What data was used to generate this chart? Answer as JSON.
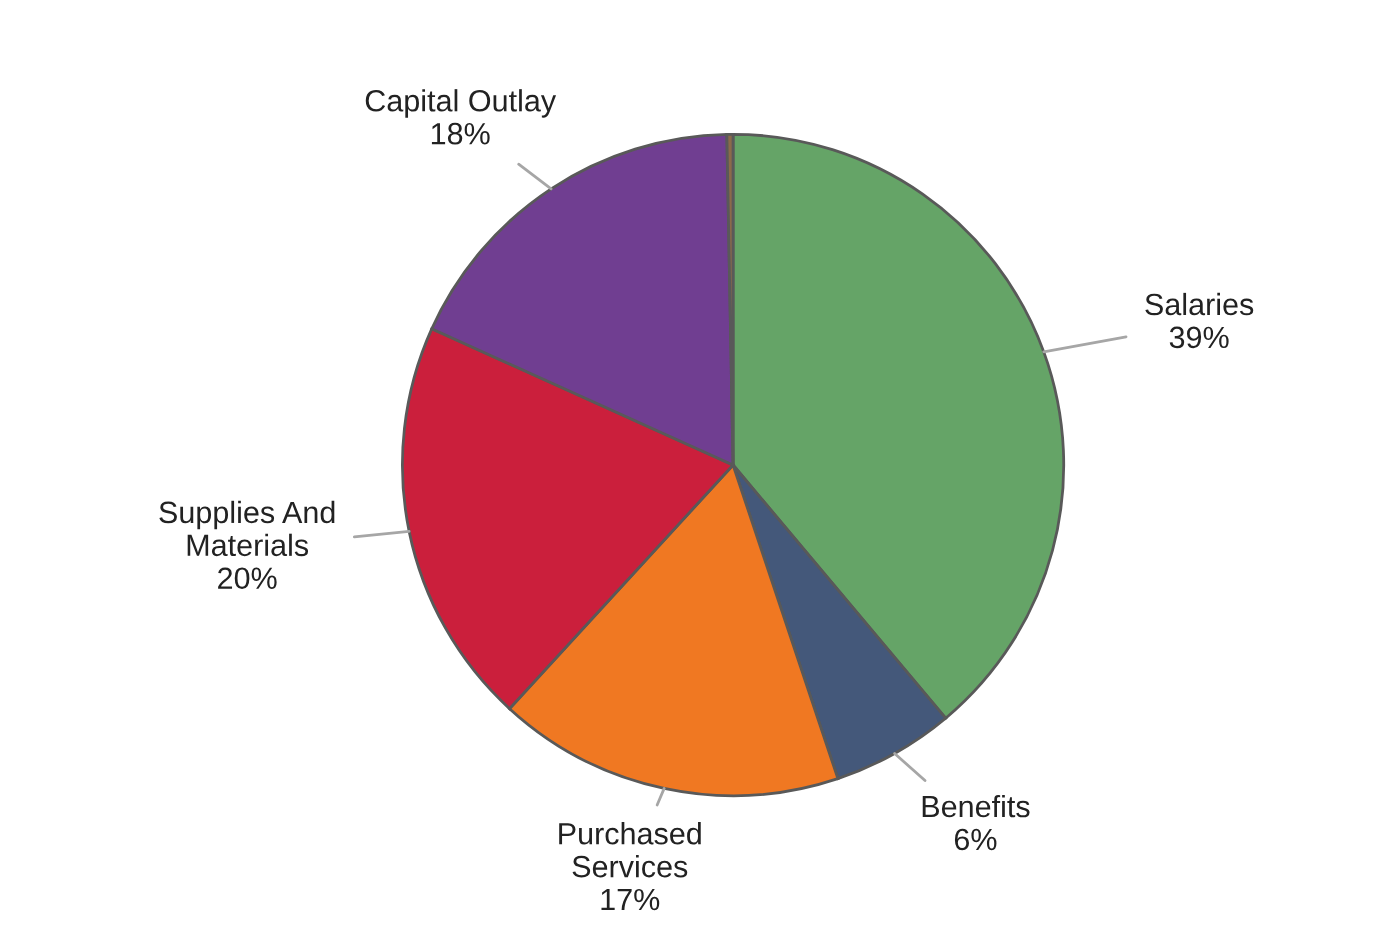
{
  "chart_data": {
    "type": "pie",
    "categories": [
      "Salaries",
      "Benefits",
      "Purchased Services",
      "Supplies And Materials",
      "Capital Outlay",
      null
    ],
    "values": [
      39,
      6,
      17,
      20,
      18,
      0.3
    ],
    "value_labels": [
      "39%",
      "6%",
      "17%",
      "20%",
      "18%",
      null
    ],
    "colors": [
      "#65a467",
      "#44587a",
      "#f07822",
      "#cb1f3c",
      "#703e91",
      "#8b6a4a"
    ],
    "legend": false
  }
}
